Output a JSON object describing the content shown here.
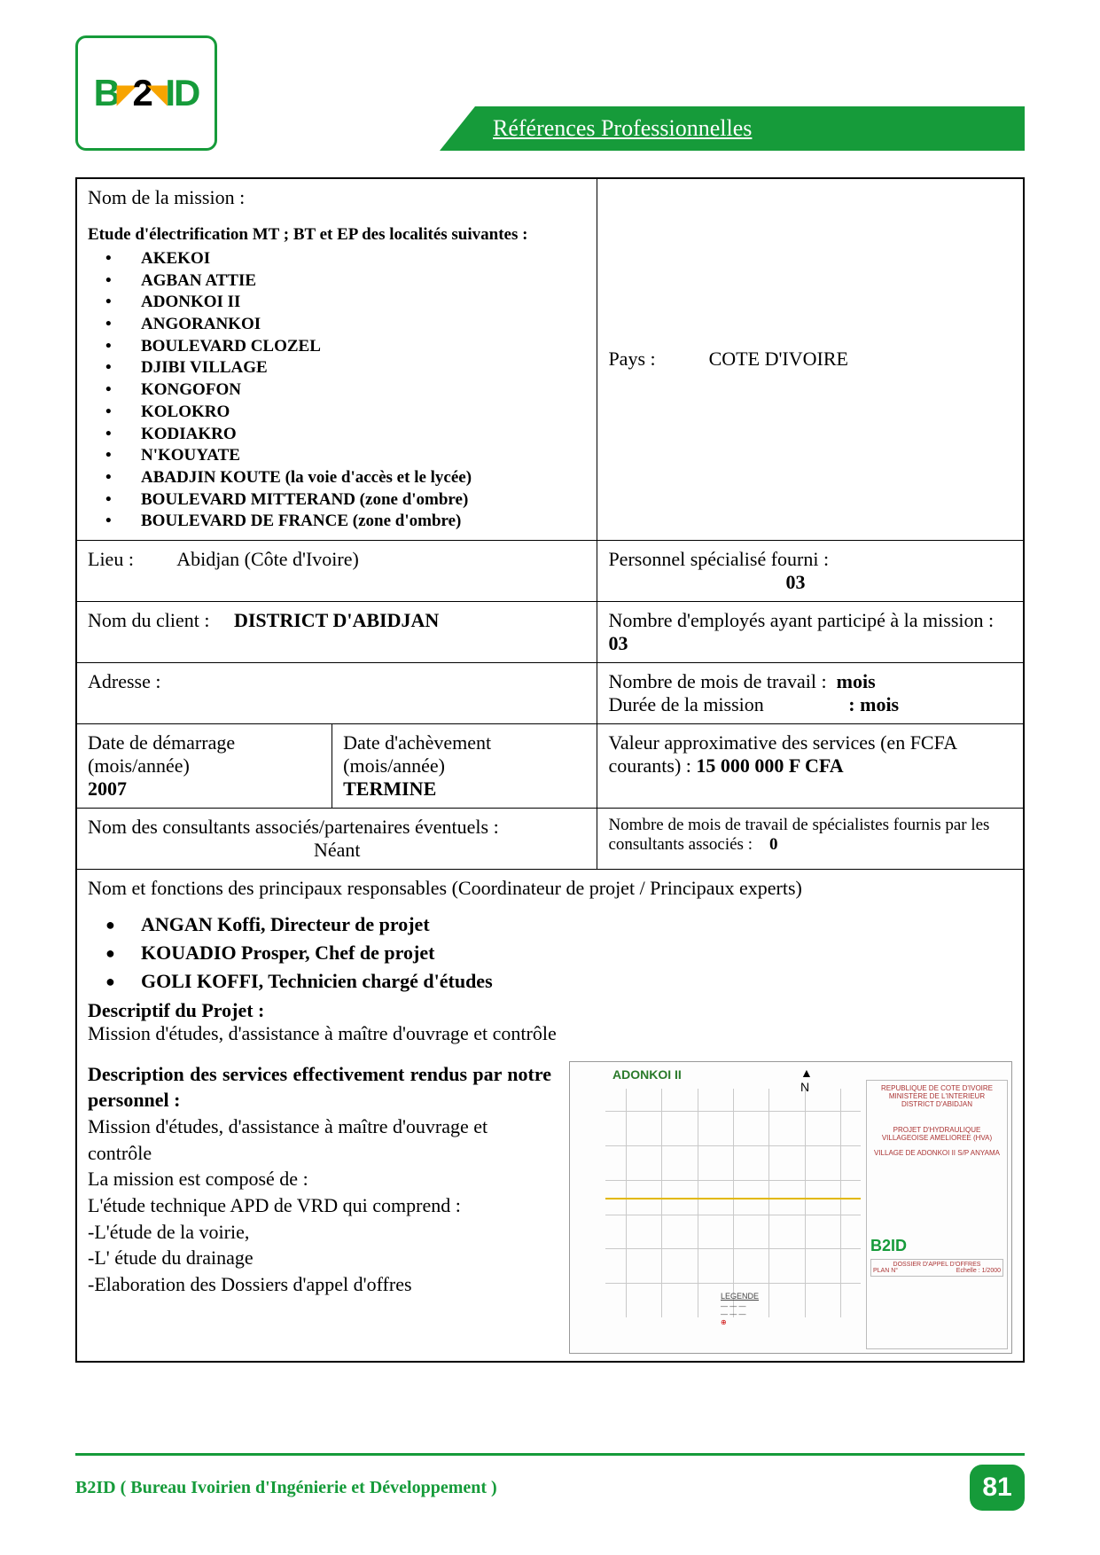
{
  "colors": {
    "brand_green": "#169b3a",
    "accent_orange": "#f7a400",
    "text": "#000000",
    "border": "#000000"
  },
  "header": {
    "logo_text_left": "B",
    "logo_text_mid": "2",
    "logo_text_right": "ID",
    "banner": "Références Professionnelles"
  },
  "mission": {
    "title_label": "Nom de la mission :",
    "intro": "Etude d'électrification MT ; BT et EP des localités suivantes :",
    "localities": [
      "AKEKOI",
      "AGBAN ATTIE",
      "ADONKOI  II",
      "ANGORANKOI",
      "BOULEVARD CLOZEL",
      "DJIBI VILLAGE",
      "KONGOFON",
      "KOLOKRO",
      "KODIAKRO",
      "N'KOUYATE",
      "ABADJIN KOUTE (la voie d'accès  et le lycée)",
      "BOULEVARD MITTERAND (zone d'ombre)",
      "BOULEVARD DE FRANCE (zone d'ombre)"
    ],
    "country_label": "Pays :",
    "country": "COTE D'IVOIRE",
    "location_label": "Lieu :",
    "location": "Abidjan (Côte d'Ivoire)",
    "staff_label": "Personnel spécialisé fourni :",
    "staff_value": "03",
    "client_label": "Nom du client :",
    "client": "DISTRICT D'ABIDJAN",
    "employees_label": "Nombre d'employés ayant participé à la mission :",
    "employees_value": "03",
    "address_label": "Adresse :",
    "months_work_label": "Nombre de mois de travail  :",
    "months_work_value": "mois",
    "duration_label": "Durée de la mission",
    "duration_value": ":  mois",
    "start_label": "Date de démarrage  (mois/année)",
    "start_value": "2007",
    "end_label": "Date d'achèvement  (mois/année)",
    "end_value": "TERMINE",
    "value_label": "Valeur approximative des services (en FCFA courants) :",
    "value_amount": "15 000 000 F CFA",
    "consultants_label": "Nom des consultants associés/partenaires éventuels :",
    "consultants_value": "Néant",
    "consult_months_label": "Nombre de mois de travail de spécialistes fournis par les consultants associés :",
    "consult_months_value": "0",
    "responsables_title": "Nom et fonctions des principaux responsables (Coordinateur de projet / Principaux experts)",
    "responsables": [
      "ANGAN Koffi,  Directeur de projet",
      "KOUADIO Prosper, Chef de projet",
      "GOLI KOFFI, Technicien chargé d'études"
    ],
    "project_desc_label": "Descriptif du Projet :",
    "project_desc": "Mission d'études, d'assistance à maître d'ouvrage et contrôle",
    "services_title": "Description des services effectivement rendus par notre personnel :",
    "services_lines": [
      "Mission d'études, d'assistance à maître d'ouvrage et contrôle",
      "La mission  est composé de :",
      "L'étude technique APD de VRD qui comprend :",
      "-L'étude de la voirie,",
      "-L' étude du drainage",
      "-Elaboration des Dossiers d'appel d'offres"
    ]
  },
  "map": {
    "title": "ADONKOI II",
    "compass": "N",
    "legend_title": "LEGENDE",
    "cartouche": {
      "line1": "REPUBLIQUE DE COTE D'IVOIRE",
      "line2": "MINISTERE DE L'INTERIEUR",
      "line3": "DISTRICT D'ABIDJAN",
      "line4": "PROJET D'HYDRAULIQUE VILLAGEOISE AMELIOREE (HVA)",
      "line5": "VILLAGE DE ADONKOI II  S/P  ANYAMA",
      "box_title": "DOSSIER D'APPEL D'OFFRES",
      "plan": "PLAN  N°",
      "echelle": "Echelle : 1/2000"
    }
  },
  "footer": {
    "text": "B2ID ( Bureau Ivoirien d'Ingénierie et Développement )",
    "page": "81"
  }
}
